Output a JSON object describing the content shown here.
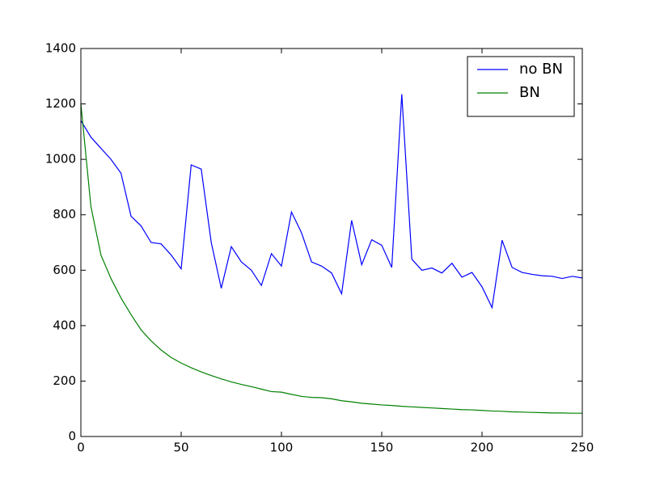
{
  "chart_data": {
    "type": "line",
    "x": [
      0,
      5,
      10,
      15,
      20,
      25,
      30,
      35,
      40,
      45,
      50,
      55,
      60,
      65,
      70,
      75,
      80,
      85,
      90,
      95,
      100,
      105,
      110,
      115,
      120,
      125,
      130,
      135,
      140,
      145,
      150,
      155,
      160,
      165,
      170,
      175,
      180,
      185,
      190,
      195,
      200,
      205,
      210,
      215,
      220,
      225,
      230,
      235,
      240,
      245,
      250
    ],
    "series": [
      {
        "name": "no BN",
        "color": "#0000ff",
        "values": [
          1140,
          1080,
          1040,
          1000,
          950,
          795,
          760,
          700,
          695,
          655,
          605,
          980,
          965,
          700,
          535,
          685,
          630,
          600,
          545,
          660,
          615,
          810,
          735,
          630,
          615,
          590,
          515,
          780,
          620,
          710,
          690,
          610,
          1235,
          640,
          600,
          608,
          590,
          625,
          575,
          592,
          540,
          465,
          708,
          610,
          592,
          585,
          580,
          578,
          570,
          578,
          572
        ]
      },
      {
        "name": "BN",
        "color": "#008000",
        "values": [
          1200,
          830,
          655,
          570,
          500,
          440,
          385,
          345,
          312,
          285,
          265,
          248,
          233,
          220,
          208,
          197,
          188,
          180,
          171,
          162,
          160,
          152,
          145,
          141,
          140,
          136,
          129,
          125,
          120,
          117,
          114,
          112,
          109,
          107,
          105,
          103,
          101,
          99,
          97,
          96,
          94,
          92,
          91,
          89,
          88,
          87,
          86,
          85,
          85,
          84,
          84
        ]
      }
    ],
    "xlim": [
      0,
      250
    ],
    "xticks": [
      0,
      50,
      100,
      150,
      200,
      250
    ],
    "ylim": [
      0,
      1400
    ],
    "yticks": [
      0,
      200,
      400,
      600,
      800,
      1000,
      1200,
      1400
    ],
    "legend": "upper right",
    "grid": false
  }
}
